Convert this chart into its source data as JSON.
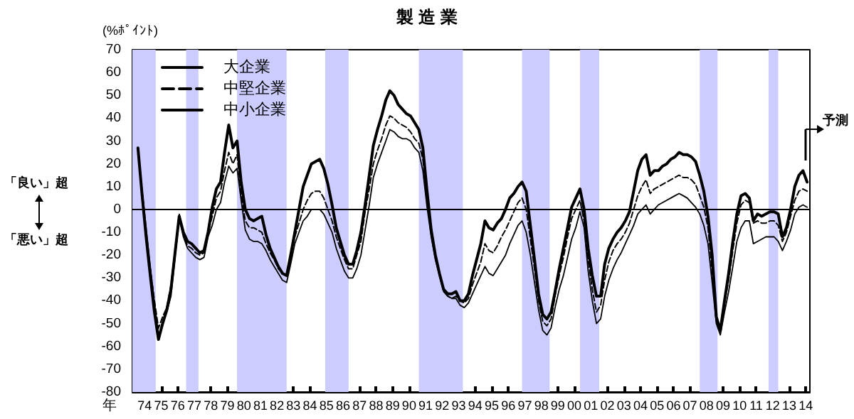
{
  "chart_data": {
    "type": "line",
    "title": "製 造 業",
    "ylabel": "(%ﾎﾟｲﾝﾄ)",
    "xlabel": "年",
    "x": [
      "1974-02",
      "1974-05",
      "1974-08",
      "1974-11",
      "1975-02",
      "1975-05",
      "1975-08",
      "1975-11",
      "1976-02",
      "1976-05",
      "1976-08",
      "1976-11",
      "1977-02",
      "1977-05",
      "1977-08",
      "1977-11",
      "1978-02",
      "1978-05",
      "1978-08",
      "1978-11",
      "1979-02",
      "1979-05",
      "1979-08",
      "1979-11",
      "1980-02",
      "1980-05",
      "1980-08",
      "1980-11",
      "1981-02",
      "1981-05",
      "1981-08",
      "1981-11",
      "1982-02",
      "1982-05",
      "1982-08",
      "1982-11",
      "1983-02",
      "1983-05",
      "1983-08",
      "1983-11",
      "1984-02",
      "1984-05",
      "1984-08",
      "1984-11",
      "1985-02",
      "1985-05",
      "1985-08",
      "1985-11",
      "1986-02",
      "1986-05",
      "1986-08",
      "1986-11",
      "1987-02",
      "1987-05",
      "1987-08",
      "1987-11",
      "1988-02",
      "1988-05",
      "1988-08",
      "1988-11",
      "1989-02",
      "1989-05",
      "1989-08",
      "1989-11",
      "1990-02",
      "1990-05",
      "1990-08",
      "1990-11",
      "1991-02",
      "1991-05",
      "1991-08",
      "1991-11",
      "1992-02",
      "1992-05",
      "1992-08",
      "1992-11",
      "1993-02",
      "1993-05",
      "1993-08",
      "1993-11",
      "1994-02",
      "1994-05",
      "1994-08",
      "1994-11",
      "1995-02",
      "1995-05",
      "1995-08",
      "1995-11",
      "1996-02",
      "1996-05",
      "1996-08",
      "1996-11",
      "1997-02",
      "1997-05",
      "1997-08",
      "1997-11",
      "1998-02",
      "1998-05",
      "1998-08",
      "1998-11",
      "1999-02",
      "1999-05",
      "1999-08",
      "1999-11",
      "2000-02",
      "2000-05",
      "2000-08",
      "2000-11",
      "2001-02",
      "2001-05",
      "2001-08",
      "2001-11",
      "2002-02",
      "2002-05",
      "2002-08",
      "2002-11",
      "2003-02",
      "2003-05",
      "2003-08",
      "2003-11",
      "2004-02",
      "2004-05",
      "2004-08",
      "2004-11",
      "2005-02",
      "2005-05",
      "2005-08",
      "2005-11",
      "2006-02",
      "2006-05",
      "2006-08",
      "2006-11",
      "2007-02",
      "2007-05",
      "2007-08",
      "2007-11",
      "2008-02",
      "2008-05",
      "2008-08",
      "2008-11",
      "2009-02",
      "2009-05",
      "2009-08",
      "2009-11",
      "2010-02",
      "2010-05",
      "2010-08",
      "2010-11",
      "2011-02",
      "2011-05",
      "2011-08",
      "2011-11",
      "2012-02",
      "2012-05",
      "2012-08",
      "2012-11",
      "2013-02",
      "2013-05",
      "2013-08",
      "2013-11",
      "2014-02",
      "2014-05",
      "2014-08"
    ],
    "series": [
      {
        "name": "大企業",
        "color": "#000000",
        "line_style": "solid",
        "values": [
          27,
          7,
          -12,
          -29,
          -45,
          -57,
          -50,
          -44,
          -35,
          -19,
          -3,
          -10,
          -14,
          -15,
          -17,
          -19,
          -18,
          -10,
          1,
          9,
          12,
          25,
          37,
          27,
          30,
          12,
          0,
          -4,
          -5,
          -4,
          -3,
          -11,
          -17,
          -21,
          -25,
          -28,
          -29,
          -20,
          -10,
          0,
          10,
          15,
          20,
          21,
          22,
          18,
          11,
          2,
          -8,
          -14,
          -20,
          -24,
          -24,
          -18,
          -10,
          2,
          15,
          28,
          35,
          41,
          48,
          52,
          50,
          46,
          44,
          42,
          41,
          38,
          35,
          27,
          8,
          -9,
          -20,
          -28,
          -35,
          -37,
          -37,
          -36,
          -40,
          -40,
          -37,
          -29,
          -22,
          -15,
          -5,
          -8,
          -9,
          -6,
          -4,
          0,
          5,
          7,
          10,
          12,
          8,
          -7,
          -22,
          -37,
          -46,
          -48,
          -45,
          -36,
          -26,
          -17,
          -8,
          1,
          5,
          9,
          0,
          -17,
          -29,
          -38,
          -38,
          -24,
          -17,
          -13,
          -10,
          -8,
          -5,
          -1,
          8,
          17,
          22,
          24,
          15,
          17,
          17,
          19,
          20,
          22,
          23,
          25,
          24,
          24,
          23,
          21,
          15,
          8,
          -3,
          -20,
          -47,
          -53,
          -40,
          -28,
          -14,
          -2,
          6,
          7,
          5,
          -5,
          -2,
          -3,
          -2,
          -1,
          -1,
          -2,
          -12,
          -8,
          0,
          10,
          15,
          17,
          12
        ]
      },
      {
        "name": "中堅企業",
        "color": "#000000",
        "line_style": "dashed",
        "values": [
          27,
          8,
          -11,
          -26,
          -40,
          -52,
          -47,
          -43,
          -33,
          -18,
          -2,
          -11,
          -16,
          -17,
          -19,
          -20,
          -19,
          -10,
          -3,
          5,
          8,
          17,
          25,
          20,
          24,
          7,
          -5,
          -8,
          -8,
          -9,
          -10,
          -15,
          -19,
          -22,
          -26,
          -28,
          -29,
          -21,
          -12,
          -6,
          0,
          4,
          7,
          8,
          8,
          5,
          0,
          -5,
          -12,
          -17,
          -22,
          -26,
          -26,
          -20,
          -14,
          -1,
          9,
          20,
          26,
          31,
          37,
          41,
          40,
          38,
          37,
          36,
          34,
          31,
          29,
          22,
          5,
          -9,
          -20,
          -28,
          -35,
          -38,
          -39,
          -38,
          -40,
          -41,
          -39,
          -33,
          -28,
          -23,
          -15,
          -18,
          -19,
          -16,
          -12,
          -9,
          -5,
          -1,
          3,
          5,
          0,
          -13,
          -26,
          -40,
          -49,
          -51,
          -48,
          -38,
          -29,
          -21,
          -12,
          -4,
          0,
          4,
          -5,
          -22,
          -35,
          -45,
          -42,
          -31,
          -23,
          -18,
          -15,
          -13,
          -10,
          -6,
          0,
          6,
          10,
          13,
          7,
          9,
          10,
          11,
          12,
          13,
          14,
          15,
          14,
          14,
          13,
          11,
          6,
          1,
          -8,
          -27,
          -49,
          -53,
          -41,
          -31,
          -18,
          -6,
          2,
          4,
          3,
          -6,
          -5,
          -6,
          -6,
          -5,
          -5,
          -7,
          -14,
          -10,
          -3,
          4,
          8,
          9,
          8
        ]
      },
      {
        "name": "中小企業",
        "color": "#000000",
        "line_style": "solid",
        "values": [
          27,
          9,
          -8,
          -25,
          -41,
          -55,
          -50,
          -45,
          -38,
          -21,
          -4,
          -12,
          -17,
          -19,
          -21,
          -22,
          -21,
          -12,
          -7,
          0,
          3,
          12,
          19,
          16,
          18,
          4,
          -9,
          -13,
          -14,
          -14,
          -15,
          -18,
          -22,
          -25,
          -28,
          -31,
          -32,
          -24,
          -15,
          -10,
          -5,
          -3,
          0,
          0,
          0,
          -2,
          -6,
          -10,
          -17,
          -22,
          -27,
          -30,
          -30,
          -26,
          -20,
          -9,
          2,
          14,
          20,
          25,
          30,
          35,
          34,
          32,
          31,
          31,
          30,
          27,
          25,
          17,
          1,
          -12,
          -22,
          -29,
          -36,
          -38,
          -39,
          -39,
          -42,
          -43,
          -41,
          -37,
          -33,
          -29,
          -25,
          -28,
          -29,
          -26,
          -23,
          -20,
          -15,
          -11,
          -7,
          -5,
          -10,
          -20,
          -32,
          -44,
          -53,
          -55,
          -52,
          -43,
          -35,
          -29,
          -21,
          -13,
          -8,
          -1,
          -8,
          -27,
          -40,
          -50,
          -48,
          -38,
          -31,
          -26,
          -22,
          -19,
          -15,
          -11,
          -7,
          -2,
          0,
          2,
          -2,
          0,
          2,
          3,
          4,
          5,
          6,
          7,
          6,
          5,
          3,
          1,
          -2,
          -7,
          -15,
          -32,
          -50,
          -55,
          -45,
          -36,
          -25,
          -14,
          -8,
          -5,
          -5,
          -15,
          -14,
          -13,
          -12,
          -12,
          -12,
          -14,
          -18,
          -14,
          -9,
          -2,
          1,
          2,
          1
        ]
      }
    ],
    "xlim": [
      "1973-10",
      "2014-10"
    ],
    "xticks": [
      {
        "value": "1974-07",
        "label": "74"
      },
      {
        "value": "1975-07",
        "label": "75"
      },
      {
        "value": "1976-07",
        "label": "76"
      },
      {
        "value": "1977-07",
        "label": "77"
      },
      {
        "value": "1978-07",
        "label": "78"
      },
      {
        "value": "1979-07",
        "label": "79"
      },
      {
        "value": "1980-07",
        "label": "80"
      },
      {
        "value": "1981-07",
        "label": "81"
      },
      {
        "value": "1982-07",
        "label": "82"
      },
      {
        "value": "1983-07",
        "label": "83"
      },
      {
        "value": "1984-07",
        "label": "84"
      },
      {
        "value": "1985-07",
        "label": "85"
      },
      {
        "value": "1986-07",
        "label": "86"
      },
      {
        "value": "1987-07",
        "label": "87"
      },
      {
        "value": "1988-07",
        "label": "88"
      },
      {
        "value": "1989-07",
        "label": "89"
      },
      {
        "value": "1990-07",
        "label": "90"
      },
      {
        "value": "1991-07",
        "label": "91"
      },
      {
        "value": "1992-07",
        "label": "92"
      },
      {
        "value": "1993-07",
        "label": "93"
      },
      {
        "value": "1994-07",
        "label": "94"
      },
      {
        "value": "1995-07",
        "label": "95"
      },
      {
        "value": "1996-07",
        "label": "96"
      },
      {
        "value": "1997-07",
        "label": "97"
      },
      {
        "value": "1998-07",
        "label": "98"
      },
      {
        "value": "1999-07",
        "label": "99"
      },
      {
        "value": "2000-07",
        "label": "00"
      },
      {
        "value": "2001-07",
        "label": "01"
      },
      {
        "value": "2002-07",
        "label": "02"
      },
      {
        "value": "2003-07",
        "label": "03"
      },
      {
        "value": "2004-07",
        "label": "04"
      },
      {
        "value": "2005-07",
        "label": "05"
      },
      {
        "value": "2006-07",
        "label": "06"
      },
      {
        "value": "2007-07",
        "label": "07"
      },
      {
        "value": "2008-07",
        "label": "08"
      },
      {
        "value": "2009-07",
        "label": "09"
      },
      {
        "value": "2010-07",
        "label": "10"
      },
      {
        "value": "2011-07",
        "label": "11"
      },
      {
        "value": "2012-07",
        "label": "12"
      },
      {
        "value": "2013-07",
        "label": "13"
      },
      {
        "value": "2014-07",
        "label": "14"
      }
    ],
    "ylim": [
      -80,
      70
    ],
    "yticks": [
      -80,
      -70,
      -60,
      -50,
      -40,
      -30,
      -20,
      -10,
      0,
      10,
      20,
      30,
      40,
      50,
      60,
      70
    ],
    "bands": [
      {
        "axis": "x",
        "from": "1973-10",
        "to": "1975-03",
        "color": "#ccccff"
      },
      {
        "axis": "x",
        "from": "1977-01",
        "to": "1977-10",
        "color": "#ccccff"
      },
      {
        "axis": "x",
        "from": "1980-02",
        "to": "1983-02",
        "color": "#ccccff"
      },
      {
        "axis": "x",
        "from": "1985-06",
        "to": "1986-11",
        "color": "#ccccff"
      },
      {
        "axis": "x",
        "from": "1991-02",
        "to": "1993-10",
        "color": "#ccccff"
      },
      {
        "axis": "x",
        "from": "1997-05",
        "to": "1999-01",
        "color": "#ccccff"
      },
      {
        "axis": "x",
        "from": "2000-11",
        "to": "2002-01",
        "color": "#ccccff"
      },
      {
        "axis": "x",
        "from": "2008-02",
        "to": "2009-03",
        "color": "#ccccff"
      },
      {
        "axis": "x",
        "from": "2012-04",
        "to": "2012-11",
        "color": "#ccccff"
      }
    ],
    "ref_lines": [
      {
        "axis": "y",
        "value": 0,
        "color": "#000000"
      }
    ],
    "annotations": [
      "「良い」超",
      "「悪い」超",
      "予測"
    ],
    "grid": false,
    "legend": "top left",
    "marker": "none"
  }
}
